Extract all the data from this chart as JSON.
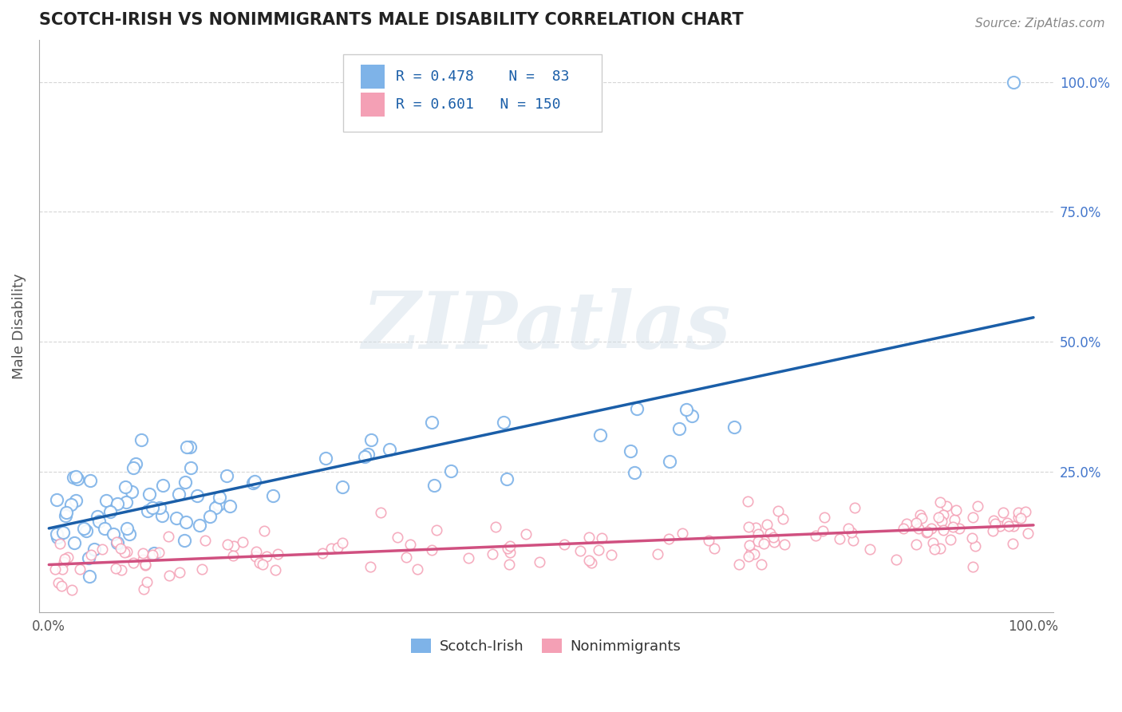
{
  "title": "SCOTCH-IRISH VS NONIMMIGRANTS MALE DISABILITY CORRELATION CHART",
  "source": "Source: ZipAtlas.com",
  "ylabel": "Male Disability",
  "xlabel": "",
  "blue_R": 0.478,
  "blue_N": 83,
  "pink_R": 0.601,
  "pink_N": 150,
  "blue_color": "#7EB3E8",
  "pink_color": "#F4A0B5",
  "blue_line_color": "#1A5EA8",
  "pink_line_color": "#D05080",
  "legend_label_blue": "Scotch-Irish",
  "legend_label_pink": "Nonimmigrants",
  "watermark_text": "ZIPatlas",
  "background_color": "#ffffff",
  "grid_color": "#cccccc",
  "title_color": "#222222",
  "axis_label_color": "#555555",
  "right_tick_color": "#4477CC"
}
